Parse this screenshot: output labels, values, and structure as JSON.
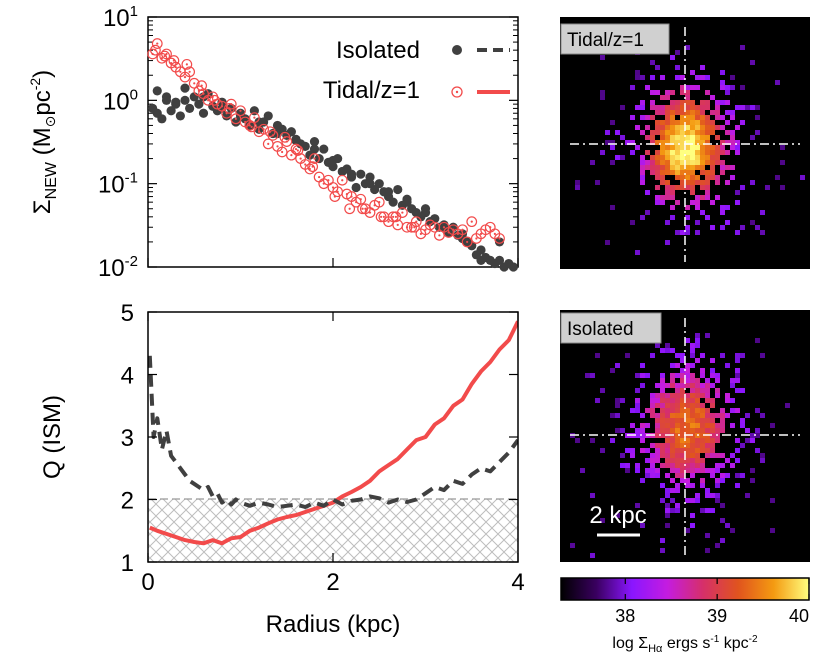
{
  "figure": {
    "colors": {
      "isolated": "#404040",
      "tidal": "#f24b4b",
      "hatch": "#bdbdbd",
      "map_background": "#000000",
      "label_box": "#d0d0d0",
      "crosshair": "#ffffff"
    },
    "colormap": [
      "#000000",
      "#3a0060",
      "#8a16ff",
      "#c41ce0",
      "#d62f6a",
      "#e0541e",
      "#f49a11",
      "#ffff80"
    ],
    "scale_bar_label": "2 kpc",
    "colorbar": {
      "ticks": [
        "38",
        "39",
        "40"
      ],
      "min": 37.3,
      "max": 40,
      "label_prefix": "log Σ",
      "label_sub": "Hα",
      "label_suffix": " ergs s",
      "label_sup1": "-1",
      "label_unit": " kpc",
      "label_sup2": "-2"
    },
    "maps": [
      {
        "label": "Tidal/z=1",
        "kind": "tidal"
      },
      {
        "label": "Isolated",
        "kind": "isolated"
      }
    ]
  },
  "chart_data": [
    {
      "type": "scatter",
      "yscale": "log",
      "xlim": [
        0,
        4
      ],
      "ylim": [
        0.01,
        10
      ],
      "ylabel_base": "Σ",
      "ylabel_sub": "NEW",
      "ylabel_rest": " (M",
      "ylabel_unit": "pc",
      "ylabel_sup": "-2",
      "ylabel_close": ")",
      "yticks": [
        {
          "value": 0.01,
          "base": "10",
          "exp": "-2"
        },
        {
          "value": 0.1,
          "base": "10",
          "exp": "-1"
        },
        {
          "value": 1,
          "base": "10",
          "exp": "0"
        },
        {
          "value": 10,
          "base": "10",
          "exp": "1"
        }
      ],
      "legend_position": "top-right",
      "series": [
        {
          "name": "Isolated",
          "marker": "filled-circle",
          "x": [
            0.05,
            0.1,
            0.15,
            0.2,
            0.25,
            0.3,
            0.35,
            0.4,
            0.45,
            0.5,
            0.55,
            0.6,
            0.65,
            0.7,
            0.75,
            0.8,
            0.85,
            0.9,
            0.95,
            1.0,
            1.05,
            1.1,
            1.15,
            1.2,
            1.25,
            1.3,
            1.35,
            1.4,
            1.45,
            1.5,
            1.55,
            1.6,
            1.65,
            1.7,
            1.75,
            1.8,
            1.85,
            1.9,
            1.95,
            2.0,
            2.05,
            2.1,
            2.15,
            2.2,
            2.25,
            2.3,
            2.35,
            2.4,
            2.45,
            2.5,
            2.55,
            2.6,
            2.65,
            2.7,
            2.75,
            2.8,
            2.85,
            2.9,
            2.95,
            3.0,
            3.05,
            3.1,
            3.15,
            3.2,
            3.25,
            3.3,
            3.35,
            3.4,
            3.45,
            3.5,
            3.55,
            3.6,
            3.65,
            3.7,
            3.75,
            3.8,
            3.85,
            3.9,
            3.95,
            0.1,
            0.2,
            0.3,
            0.4,
            0.6,
            0.8,
            1.0,
            1.2,
            1.4,
            1.6,
            1.8,
            2.0,
            2.2,
            2.4,
            2.6,
            2.8,
            3.0,
            3.2,
            3.4,
            3.6,
            3.8
          ],
          "y": [
            0.8,
            1.3,
            0.6,
            1.1,
            0.75,
            0.9,
            0.65,
            1.4,
            0.8,
            1.1,
            0.9,
            0.7,
            1.2,
            0.85,
            0.75,
            0.95,
            0.65,
            0.8,
            0.55,
            0.7,
            0.6,
            0.5,
            0.75,
            0.45,
            0.55,
            0.65,
            0.4,
            0.5,
            0.45,
            0.38,
            0.42,
            0.34,
            0.3,
            0.28,
            0.22,
            0.32,
            0.2,
            0.26,
            0.18,
            0.16,
            0.2,
            0.14,
            0.15,
            0.12,
            0.09,
            0.13,
            0.1,
            0.12,
            0.085,
            0.1,
            0.08,
            0.07,
            0.06,
            0.085,
            0.055,
            0.065,
            0.05,
            0.045,
            0.04,
            0.05,
            0.035,
            0.038,
            0.03,
            0.032,
            0.026,
            0.03,
            0.024,
            0.022,
            0.02,
            0.018,
            0.014,
            0.012,
            0.013,
            0.012,
            0.011,
            0.012,
            0.01,
            0.011,
            0.01,
            0.7,
            1.0,
            0.95,
            1.0,
            1.1,
            0.8,
            0.65,
            0.55,
            0.4,
            0.33,
            0.26,
            0.19,
            0.13,
            0.1,
            0.08,
            0.06,
            0.045,
            0.03,
            0.025,
            0.016,
            0.02
          ]
        },
        {
          "name": "Tidal/z=1",
          "marker": "open-circle-dot",
          "x": [
            0.05,
            0.1,
            0.15,
            0.2,
            0.25,
            0.3,
            0.35,
            0.4,
            0.45,
            0.5,
            0.55,
            0.6,
            0.65,
            0.7,
            0.75,
            0.8,
            0.85,
            0.9,
            0.95,
            1.0,
            1.05,
            1.1,
            1.15,
            1.2,
            1.25,
            1.3,
            1.35,
            1.4,
            1.45,
            1.5,
            1.55,
            1.6,
            1.65,
            1.7,
            1.75,
            1.8,
            1.85,
            1.9,
            1.95,
            2.0,
            2.05,
            2.1,
            2.15,
            2.2,
            2.25,
            2.3,
            2.35,
            2.4,
            2.45,
            2.5,
            2.55,
            2.6,
            2.65,
            2.7,
            2.75,
            2.8,
            2.85,
            2.9,
            2.95,
            3.0,
            3.05,
            3.1,
            3.15,
            3.2,
            3.25,
            3.3,
            3.35,
            3.4,
            3.45,
            3.5,
            3.55,
            3.6,
            3.65,
            3.7,
            3.75,
            3.8,
            0.08,
            0.18,
            0.28,
            0.42,
            0.58,
            0.72,
            0.88,
            1.12,
            1.32,
            1.48,
            1.62,
            1.78,
            2.02,
            2.18,
            2.32,
            2.52,
            2.68,
            2.88
          ],
          "y": [
            3.6,
            4.8,
            3.2,
            3.6,
            2.8,
            2.5,
            2.2,
            1.9,
            2.2,
            1.6,
            1.3,
            1.2,
            1.0,
            1.1,
            0.9,
            0.85,
            0.7,
            0.9,
            0.6,
            0.75,
            0.55,
            0.5,
            0.62,
            0.42,
            0.45,
            0.3,
            0.38,
            0.28,
            0.24,
            0.32,
            0.22,
            0.26,
            0.2,
            0.17,
            0.15,
            0.2,
            0.12,
            0.1,
            0.11,
            0.09,
            0.08,
            0.11,
            0.075,
            0.07,
            0.06,
            0.065,
            0.05,
            0.045,
            0.055,
            0.06,
            0.04,
            0.035,
            0.04,
            0.032,
            0.045,
            0.03,
            0.03,
            0.035,
            0.025,
            0.028,
            0.032,
            0.03,
            0.024,
            0.03,
            0.026,
            0.028,
            0.025,
            0.028,
            0.02,
            0.035,
            0.022,
            0.025,
            0.028,
            0.03,
            0.025,
            0.022,
            4.0,
            3.4,
            3.0,
            2.7,
            1.5,
            1.0,
            0.8,
            0.48,
            0.42,
            0.36,
            0.25,
            0.16,
            0.07,
            0.05,
            0.05,
            0.04,
            0.04,
            0.03
          ]
        }
      ]
    },
    {
      "type": "line",
      "xlim": [
        0,
        4
      ],
      "ylim": [
        1,
        5
      ],
      "xlabel": "Radius (kpc)",
      "ylabel": "Q (ISM)",
      "xticks": [
        "0",
        "2",
        "4"
      ],
      "yticks": [
        "1",
        "2",
        "3",
        "4",
        "5"
      ],
      "hatched_region": {
        "y_from": 1,
        "y_to": 2
      },
      "threshold_line": 2,
      "series": [
        {
          "name": "Isolated",
          "style": "dashed",
          "x": [
            0.02,
            0.06,
            0.1,
            0.15,
            0.2,
            0.25,
            0.3,
            0.35,
            0.4,
            0.45,
            0.5,
            0.55,
            0.6,
            0.65,
            0.7,
            0.75,
            0.8,
            0.85,
            0.9,
            0.95,
            1.0,
            1.1,
            1.2,
            1.3,
            1.4,
            1.5,
            1.6,
            1.7,
            1.8,
            1.9,
            2.0,
            2.1,
            2.2,
            2.3,
            2.4,
            2.5,
            2.6,
            2.7,
            2.8,
            2.9,
            3.0,
            3.1,
            3.2,
            3.3,
            3.4,
            3.5,
            3.6,
            3.7,
            3.8,
            3.9,
            4.0
          ],
          "y": [
            4.3,
            3.0,
            3.3,
            2.8,
            3.1,
            2.7,
            2.6,
            2.5,
            2.4,
            2.3,
            2.25,
            2.2,
            2.15,
            2.2,
            2.05,
            2.1,
            1.95,
            2.0,
            1.92,
            2.0,
            1.95,
            1.9,
            1.95,
            1.92,
            1.88,
            1.9,
            1.92,
            1.88,
            1.95,
            1.9,
            2.0,
            1.92,
            1.98,
            2.0,
            2.05,
            2.02,
            1.95,
            2.0,
            1.96,
            2.0,
            2.1,
            2.2,
            2.15,
            2.3,
            2.25,
            2.4,
            2.5,
            2.45,
            2.6,
            2.75,
            2.95
          ]
        },
        {
          "name": "Tidal/z=1",
          "style": "solid",
          "x": [
            0.02,
            0.1,
            0.2,
            0.3,
            0.4,
            0.5,
            0.6,
            0.7,
            0.8,
            0.9,
            1.0,
            1.1,
            1.2,
            1.3,
            1.4,
            1.5,
            1.6,
            1.7,
            1.8,
            1.9,
            2.0,
            2.1,
            2.2,
            2.3,
            2.4,
            2.5,
            2.6,
            2.7,
            2.8,
            2.9,
            3.0,
            3.1,
            3.2,
            3.3,
            3.4,
            3.5,
            3.6,
            3.7,
            3.8,
            3.9,
            4.0
          ],
          "y": [
            1.55,
            1.5,
            1.45,
            1.4,
            1.35,
            1.32,
            1.3,
            1.35,
            1.3,
            1.38,
            1.4,
            1.5,
            1.55,
            1.62,
            1.68,
            1.72,
            1.75,
            1.8,
            1.85,
            1.9,
            1.95,
            2.05,
            2.12,
            2.2,
            2.3,
            2.45,
            2.55,
            2.65,
            2.8,
            2.95,
            3.0,
            3.2,
            3.3,
            3.5,
            3.6,
            3.85,
            4.05,
            4.2,
            4.4,
            4.55,
            4.85
          ]
        }
      ]
    }
  ]
}
